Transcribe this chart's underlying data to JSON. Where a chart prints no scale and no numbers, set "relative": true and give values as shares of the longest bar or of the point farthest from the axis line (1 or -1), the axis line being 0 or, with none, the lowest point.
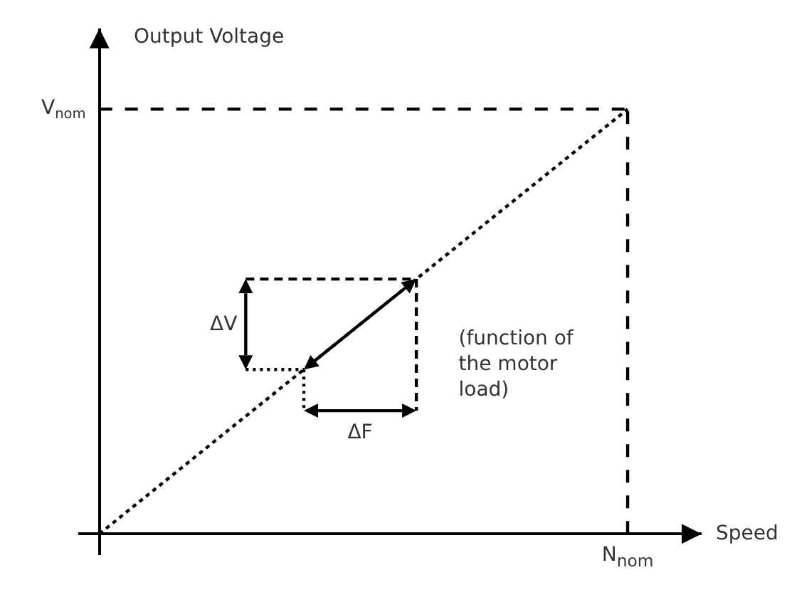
{
  "chart_data": {
    "type": "line",
    "relative": true,
    "xlabel": "Speed",
    "ylabel": "Output Voltage",
    "categories": [
      null,
      null
    ],
    "series": [
      {
        "color": "#000000",
        "line_style": "dotted",
        "values": [
          0,
          1
        ]
      }
    ],
    "ref_lines": [
      {
        "axis": "y",
        "value": 1,
        "label": "V$_{nom}$",
        "line_style": "dashed",
        "color": "#000000"
      }
    ],
    "annotations": [
      "ΔV",
      "ΔF",
      "(function of the motor load)",
      "N$_{nom}$"
    ]
  }
}
